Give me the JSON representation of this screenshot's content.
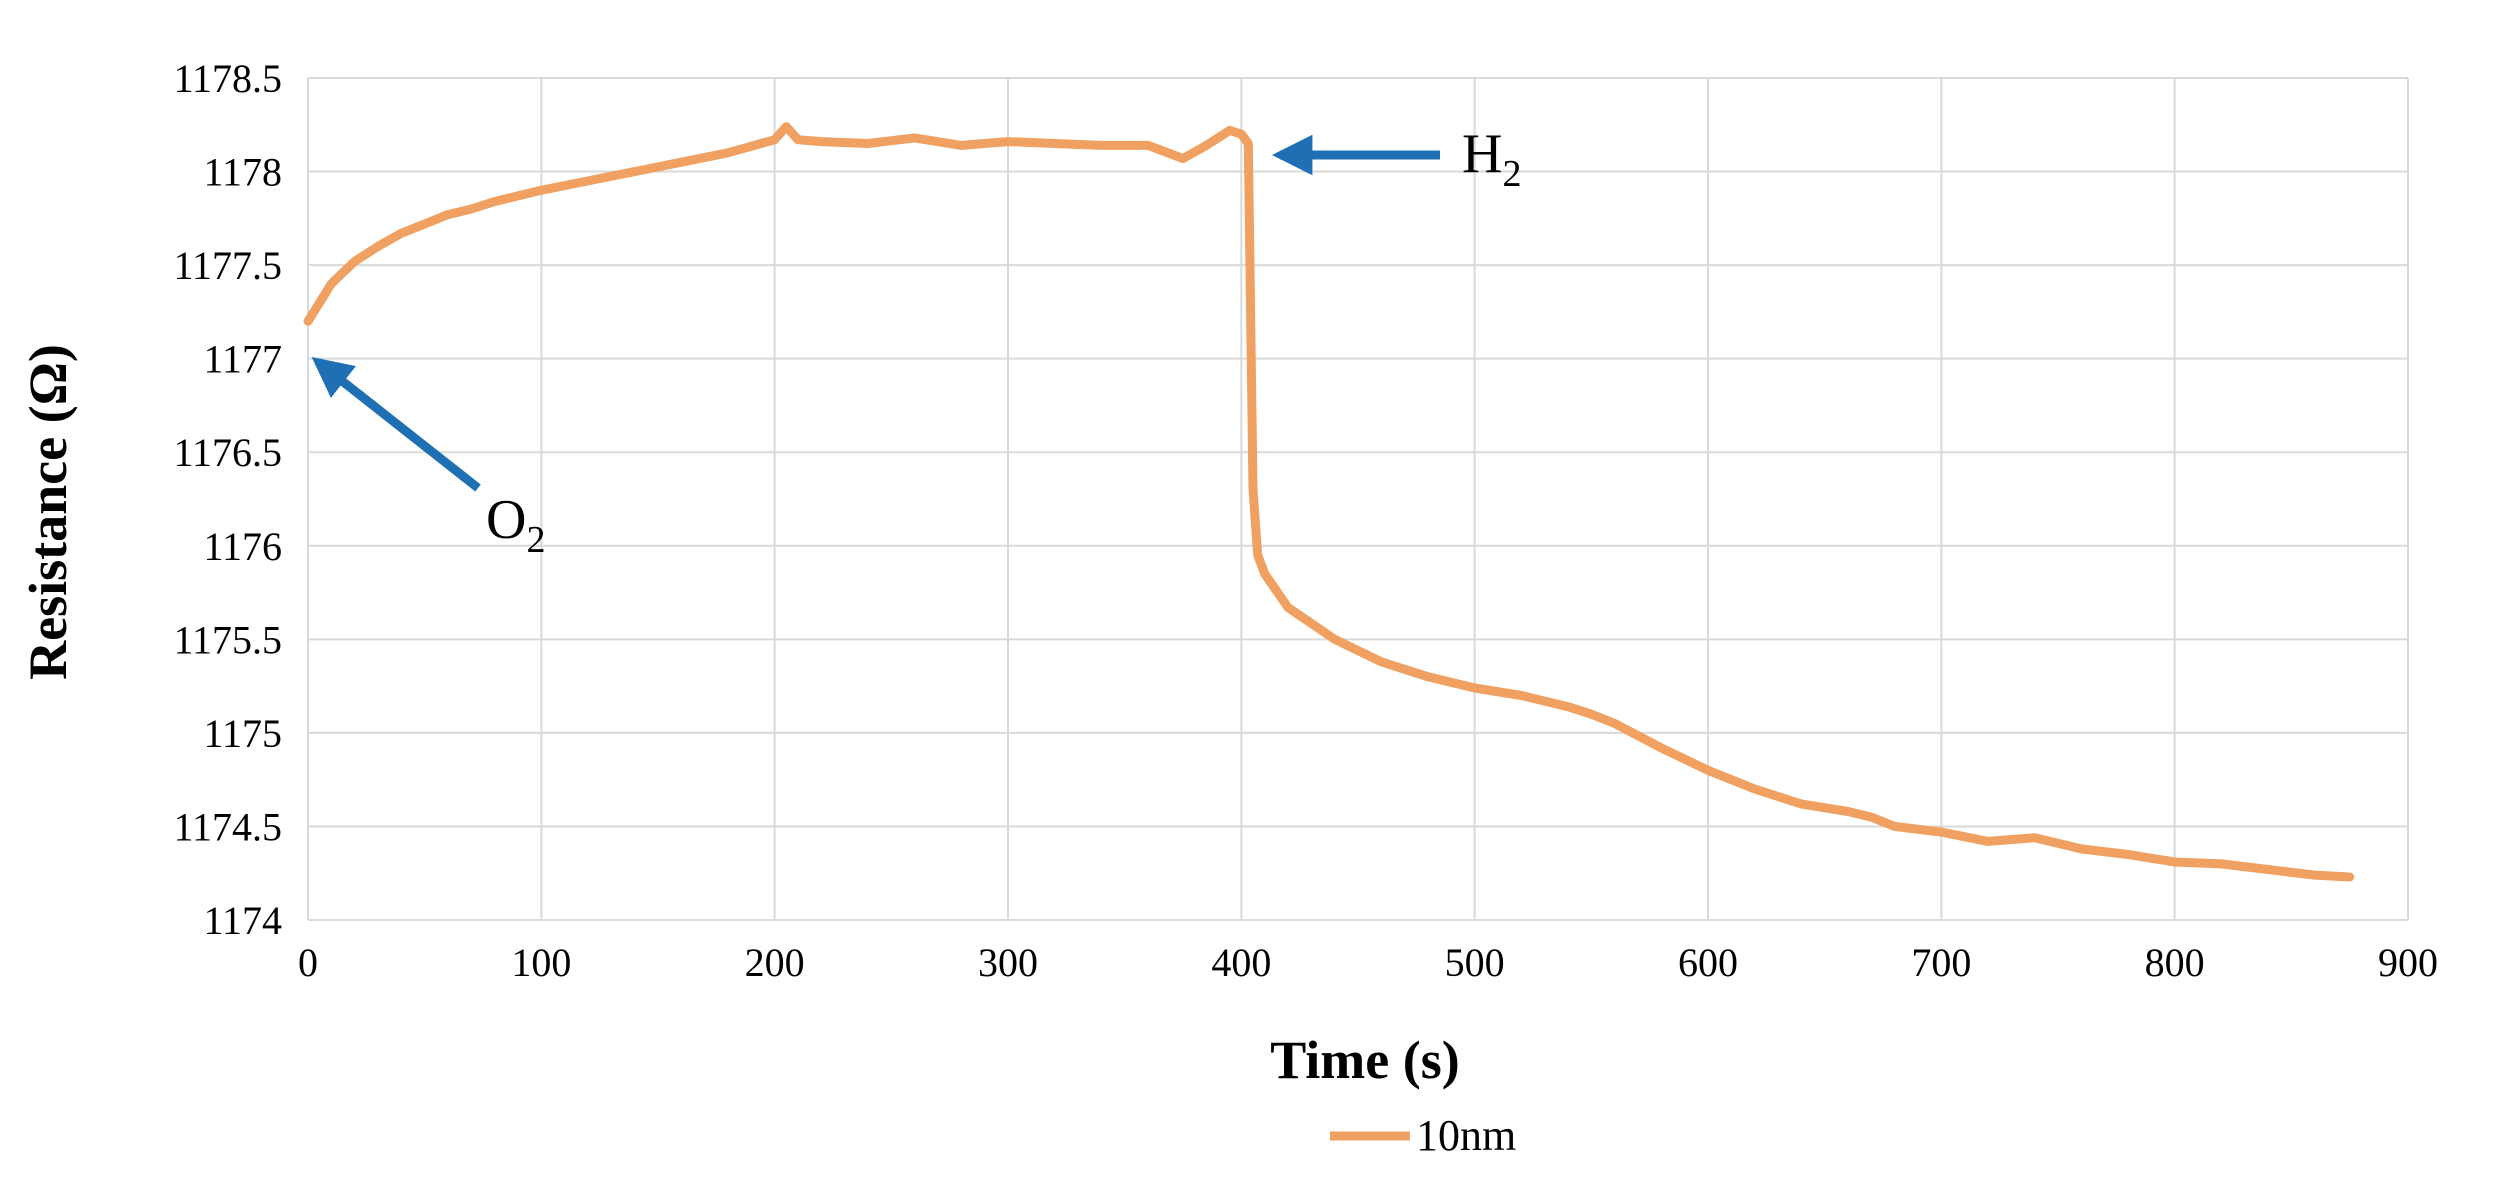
{
  "chart_data": {
    "type": "line",
    "xlabel": "Time (s)",
    "ylabel": "Resistance (Ω)",
    "xlim": [
      0,
      900
    ],
    "ylim": [
      1174,
      1178.5
    ],
    "xticks": [
      "0",
      "100",
      "200",
      "300",
      "400",
      "500",
      "600",
      "700",
      "800",
      "900"
    ],
    "yticks": [
      "1174",
      "1174.5",
      "1175",
      "1175.5",
      "1176",
      "1176.5",
      "1177",
      "1177.5",
      "1178",
      "1178.5"
    ],
    "grid": true,
    "legend_position": "bottom-center",
    "series": [
      {
        "name": "10nm",
        "color": "#F0A060",
        "x": [
          0,
          10,
          20,
          30,
          40,
          50,
          60,
          70,
          80,
          90,
          100,
          120,
          140,
          160,
          180,
          200,
          205,
          210,
          220,
          240,
          260,
          280,
          300,
          320,
          340,
          360,
          375,
          385,
          395,
          400,
          403,
          405,
          407,
          410,
          420,
          440,
          460,
          480,
          500,
          520,
          540,
          550,
          560,
          580,
          600,
          620,
          640,
          660,
          670,
          680,
          700,
          720,
          740,
          760,
          780,
          800,
          820,
          840,
          860,
          875
        ],
        "y": [
          1177.2,
          1177.4,
          1177.52,
          1177.6,
          1177.67,
          1177.72,
          1177.77,
          1177.8,
          1177.84,
          1177.87,
          1177.9,
          1177.95,
          1178.0,
          1178.05,
          1178.1,
          1178.17,
          1178.24,
          1178.17,
          1178.16,
          1178.15,
          1178.18,
          1178.14,
          1178.16,
          1178.15,
          1178.14,
          1178.14,
          1178.07,
          1178.14,
          1178.22,
          1178.2,
          1178.15,
          1176.3,
          1175.95,
          1175.85,
          1175.67,
          1175.5,
          1175.38,
          1175.3,
          1175.24,
          1175.2,
          1175.14,
          1175.1,
          1175.05,
          1174.92,
          1174.8,
          1174.7,
          1174.62,
          1174.58,
          1174.55,
          1174.5,
          1174.47,
          1174.42,
          1174.44,
          1174.38,
          1174.35,
          1174.31,
          1174.3,
          1174.27,
          1174.24,
          1174.23
        ]
      }
    ],
    "annotations": [
      {
        "label": "O",
        "subscript": "2",
        "arrow_color": "#1F6FB5",
        "points_to": {
          "x": 0,
          "y": 1177.08
        }
      },
      {
        "label": "H",
        "subscript": "2",
        "arrow_color": "#1F6FB5",
        "points_to": {
          "x": 410,
          "y": 1178.15
        }
      }
    ]
  }
}
